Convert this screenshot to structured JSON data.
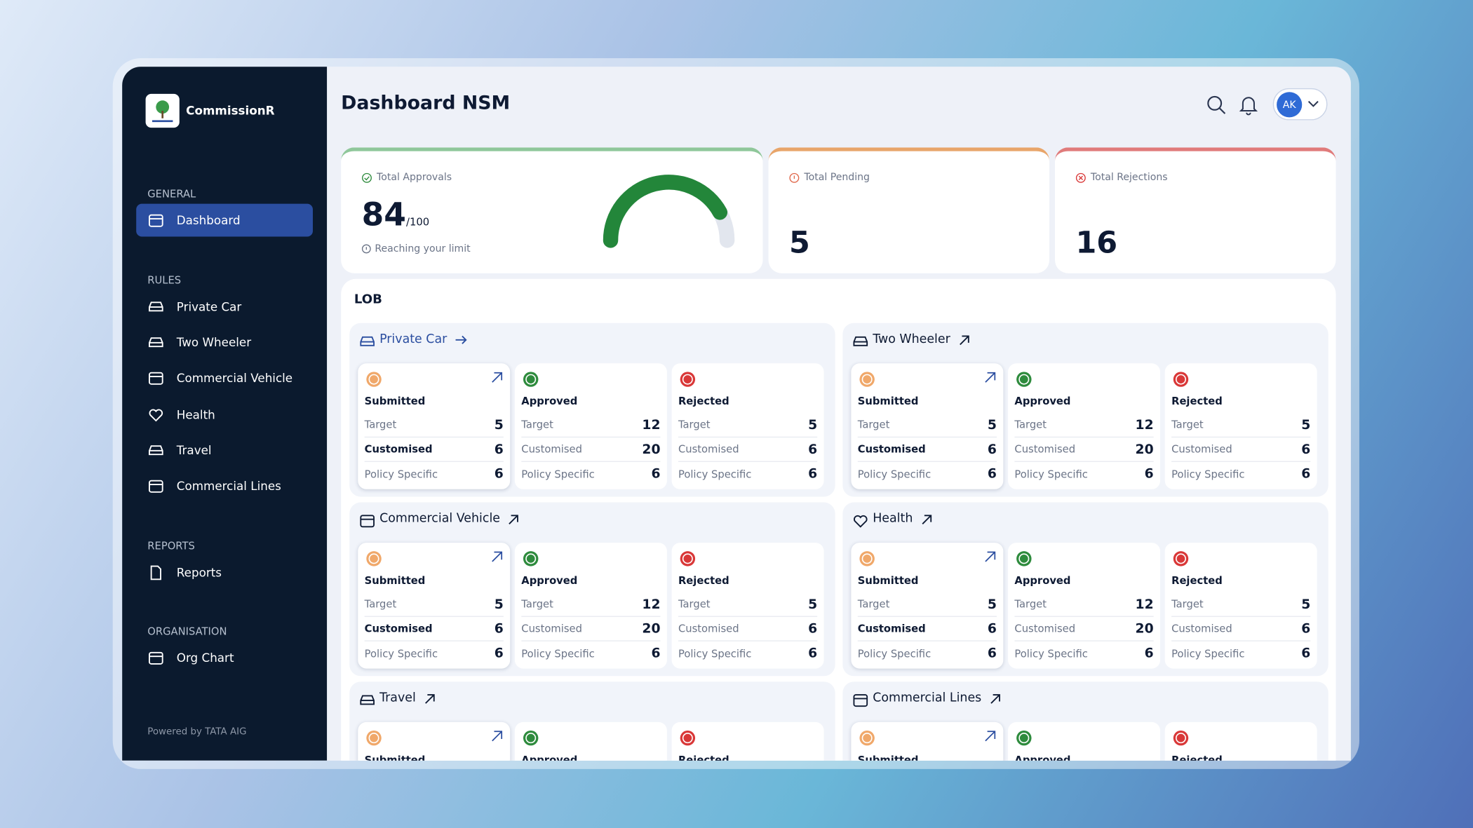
{
  "sidebar": {
    "brand": "CommissionR",
    "sections": [
      {
        "title": "GENERAL",
        "items": [
          "Dashboard"
        ]
      },
      {
        "title": "RULES",
        "items": [
          "Private Car",
          "Two Wheeler",
          "Commercial Vehicle",
          "Health",
          "Travel",
          "Commercial Lines"
        ]
      },
      {
        "title": "REPORTS",
        "items": [
          "Reports"
        ]
      },
      {
        "title": "ORGANISATION",
        "items": [
          "Org Chart"
        ]
      }
    ],
    "footer": "Powered by TATA AIG"
  },
  "header": {
    "title": "Dashboard NSM",
    "avatar": "AK"
  },
  "stats": {
    "approvals": {
      "label": "Total Approvals",
      "value": 84,
      "max": {
        "value": 100,
        "label": "/100"
      },
      "note": "Reaching your limit"
    },
    "pending": {
      "label": "Total Pending",
      "value": 5
    },
    "rejections": {
      "label": "Total Rejections",
      "value": 16
    }
  },
  "lob": {
    "title": "LOB",
    "groups": [
      {
        "name": "Private Car",
        "cards": [
          {
            "status": "Submitted",
            "rows": [
              {
                "label": "Target",
                "value": 5
              },
              {
                "label": "Customised",
                "value": 6
              },
              {
                "label": "Policy Specific",
                "value": 6
              }
            ]
          },
          {
            "status": "Approved",
            "rows": [
              {
                "label": "Target",
                "value": 12
              },
              {
                "label": "Customised",
                "value": 20
              },
              {
                "label": "Policy Specific",
                "value": 6
              }
            ]
          },
          {
            "status": "Rejected",
            "rows": [
              {
                "label": "Target",
                "value": 5
              },
              {
                "label": "Customised",
                "value": 6
              },
              {
                "label": "Policy Specific",
                "value": 6
              }
            ]
          }
        ]
      },
      {
        "name": "Two Wheeler",
        "cards": [
          {
            "status": "Submitted",
            "rows": [
              {
                "label": "Target",
                "value": 5
              },
              {
                "label": "Customised",
                "value": 6
              },
              {
                "label": "Policy Specific",
                "value": 6
              }
            ]
          },
          {
            "status": "Approved",
            "rows": [
              {
                "label": "Target",
                "value": 12
              },
              {
                "label": "Customised",
                "value": 20
              },
              {
                "label": "Policy Specific",
                "value": 6
              }
            ]
          },
          {
            "status": "Rejected",
            "rows": [
              {
                "label": "Target",
                "value": 5
              },
              {
                "label": "Customised",
                "value": 6
              },
              {
                "label": "Policy Specific",
                "value": 6
              }
            ]
          }
        ]
      },
      {
        "name": "Commercial Vehicle",
        "cards": [
          {
            "status": "Submitted",
            "rows": [
              {
                "label": "Target",
                "value": 5
              },
              {
                "label": "Customised",
                "value": 6
              },
              {
                "label": "Policy Specific",
                "value": 6
              }
            ]
          },
          {
            "status": "Approved",
            "rows": [
              {
                "label": "Target",
                "value": 12
              },
              {
                "label": "Customised",
                "value": 20
              },
              {
                "label": "Policy Specific",
                "value": 6
              }
            ]
          },
          {
            "status": "Rejected",
            "rows": [
              {
                "label": "Target",
                "value": 5
              },
              {
                "label": "Customised",
                "value": 6
              },
              {
                "label": "Policy Specific",
                "value": 6
              }
            ]
          }
        ]
      },
      {
        "name": "Health",
        "cards": [
          {
            "status": "Submitted",
            "rows": [
              {
                "label": "Target",
                "value": 5
              },
              {
                "label": "Customised",
                "value": 6
              },
              {
                "label": "Policy Specific",
                "value": 6
              }
            ]
          },
          {
            "status": "Approved",
            "rows": [
              {
                "label": "Target",
                "value": 12
              },
              {
                "label": "Customised",
                "value": 20
              },
              {
                "label": "Policy Specific",
                "value": 6
              }
            ]
          },
          {
            "status": "Rejected",
            "rows": [
              {
                "label": "Target",
                "value": 5
              },
              {
                "label": "Customised",
                "value": 6
              },
              {
                "label": "Policy Specific",
                "value": 6
              }
            ]
          }
        ]
      },
      {
        "name": "Travel",
        "cards": [
          {
            "status": "Submitted"
          },
          {
            "status": "Approved"
          },
          {
            "status": "Rejected"
          }
        ]
      },
      {
        "name": "Commercial Lines",
        "cards": [
          {
            "status": "Submitted"
          },
          {
            "status": "Approved"
          },
          {
            "status": "Rejected"
          }
        ]
      }
    ]
  }
}
